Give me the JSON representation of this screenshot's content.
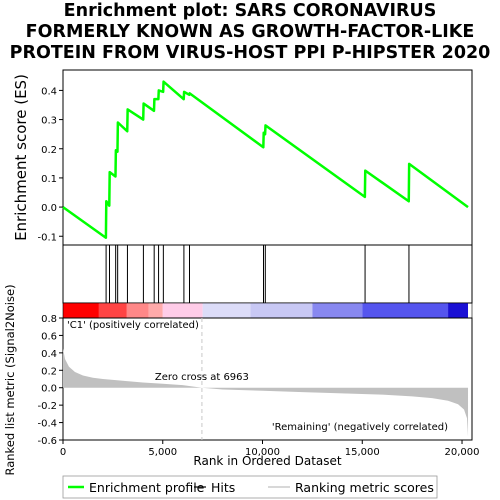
{
  "title_lines": [
    "Enrichment plot: SARS CORONAVIRUS",
    "FORMERLY KNOWN AS GROWTH-FACTOR-LIKE",
    "PROTEIN FROM VIRUS-HOST PPI P-HIPSTER 2020"
  ],
  "colors": {
    "enrichment": "#00ff00",
    "hits": "#000000",
    "metric_fill": "#c0c0c0",
    "zero_cross_line": "#c8c8c8",
    "positive_label": "#ff0000",
    "negative_label": "#0000ff"
  },
  "chart_data": [
    {
      "type": "line",
      "ylabel": "Enrichment score (ES)",
      "ylim": [
        -0.13,
        0.47
      ],
      "yticks": [
        "-0.1",
        "0.0",
        "0.1",
        "0.2",
        "0.3",
        "0.4"
      ],
      "ytick_values": [
        -0.1,
        0.0,
        0.1,
        0.2,
        0.3,
        0.4
      ],
      "xlim": [
        0,
        20500
      ],
      "series": [
        {
          "name": "Enrichment profile",
          "x": [
            0,
            2150,
            2170,
            2320,
            2340,
            2630,
            2650,
            2730,
            2750,
            3220,
            3240,
            4020,
            4040,
            4560,
            4580,
            4780,
            4800,
            5020,
            5040,
            6050,
            6070,
            6330,
            6350,
            10040,
            10060,
            10130,
            10150,
            15130,
            15150,
            17330,
            17350,
            20300
          ],
          "y": [
            0.0,
            -0.105,
            0.02,
            0.005,
            0.12,
            0.105,
            0.195,
            0.19,
            0.29,
            0.26,
            0.335,
            0.3,
            0.355,
            0.33,
            0.37,
            0.37,
            0.4,
            0.395,
            0.43,
            0.37,
            0.395,
            0.385,
            0.39,
            0.205,
            0.255,
            0.25,
            0.28,
            0.035,
            0.125,
            0.02,
            0.148,
            0.0
          ]
        }
      ]
    },
    {
      "type": "hits",
      "hit_ranks": [
        2160,
        2330,
        2640,
        2740,
        3230,
        4030,
        4570,
        4790,
        5030,
        6060,
        6340,
        10050,
        10140,
        15140,
        17340
      ]
    },
    {
      "type": "area",
      "xlabel": "Rank in Ordered Dataset",
      "ylabel": "Ranked list metric (Signal2Noise)",
      "ylim": [
        -0.6,
        0.8
      ],
      "yticks": [
        "-0.6",
        "-0.4",
        "-0.2",
        "0.0",
        "0.2",
        "0.4",
        "0.6",
        "0.8"
      ],
      "ytick_values": [
        -0.6,
        -0.4,
        -0.2,
        0.0,
        0.2,
        0.4,
        0.6,
        0.8
      ],
      "xlim": [
        0,
        20500
      ],
      "xticks": [
        "0",
        "5,000",
        "10,000",
        "15,000",
        "20,000"
      ],
      "xtick_values": [
        0,
        5000,
        10000,
        15000,
        20000
      ],
      "x": [
        0,
        100,
        300,
        600,
        1000,
        1500,
        2000,
        3000,
        4000,
        5000,
        6000,
        6963,
        8000,
        10000,
        12000,
        14000,
        16000,
        17500,
        18500,
        19300,
        19800,
        20100,
        20250,
        20300
      ],
      "y": [
        0.45,
        0.33,
        0.24,
        0.18,
        0.14,
        0.115,
        0.1,
        0.08,
        0.06,
        0.045,
        0.03,
        0.0,
        -0.02,
        -0.035,
        -0.05,
        -0.065,
        -0.08,
        -0.1,
        -0.12,
        -0.15,
        -0.19,
        -0.25,
        -0.35,
        -0.56
      ],
      "zero_cross_rank": 6963,
      "zero_cross_label": "Zero cross at 6963",
      "positive_label": "'C1' (positively correlated)",
      "negative_label": "'Remaining' (negatively correlated)"
    }
  ],
  "heatbar": [
    {
      "from": 0,
      "to": 1800,
      "color": "#ff0000"
    },
    {
      "from": 1800,
      "to": 3200,
      "color": "#ff4444"
    },
    {
      "from": 3200,
      "to": 4300,
      "color": "#ff8888"
    },
    {
      "from": 4300,
      "to": 5000,
      "color": "#ffaaaa"
    },
    {
      "from": 5000,
      "to": 7000,
      "color": "#ffcce8"
    },
    {
      "from": 7000,
      "to": 9400,
      "color": "#dcdcf8"
    },
    {
      "from": 9400,
      "to": 12500,
      "color": "#c8c8f4"
    },
    {
      "from": 12500,
      "to": 15000,
      "color": "#8888f0"
    },
    {
      "from": 15000,
      "to": 19300,
      "color": "#5555ee"
    },
    {
      "from": 19300,
      "to": 20300,
      "color": "#1a10d4"
    }
  ],
  "legend": [
    {
      "label": "Enrichment profile",
      "kind": "line",
      "color": "#00ff00"
    },
    {
      "label": "Hits",
      "kind": "line",
      "color": "#000000"
    },
    {
      "label": "Ranking metric scores",
      "kind": "line",
      "color": "#c0c0c0"
    }
  ]
}
